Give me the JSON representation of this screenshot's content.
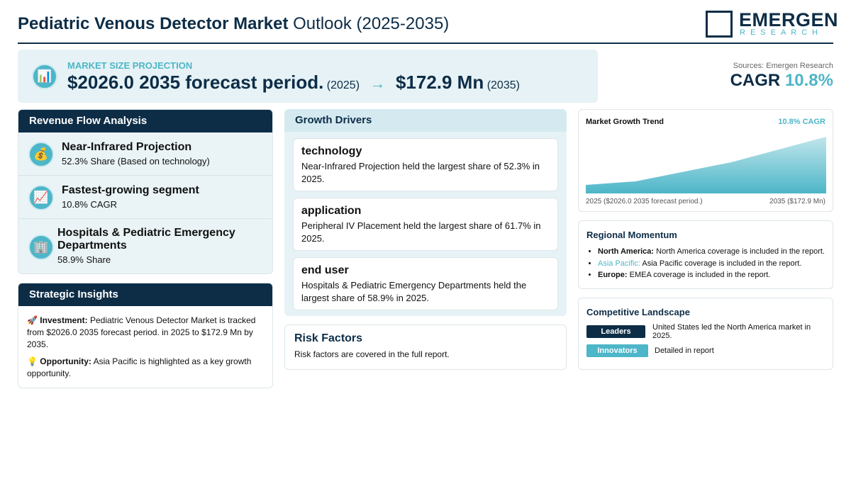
{
  "header": {
    "title_bold": "Pediatric Venous Detector Market",
    "title_rest": "Outlook (2025-2035)",
    "logo": {
      "name": "EMERGEN",
      "tagline": "RESEARCH"
    }
  },
  "projection": {
    "label": "MARKET SIZE PROJECTION",
    "start_value": "$2026.0 2035 forecast period.",
    "start_year": "(2025)",
    "end_value": "$172.9 Mn",
    "end_year": "(2035)"
  },
  "source": "Sources: Emergen Research",
  "cagr": {
    "label": "CAGR",
    "value": "10.8%"
  },
  "revenue_flow": {
    "title": "Revenue Flow Analysis",
    "items": [
      {
        "title": "Near-Infrared Projection",
        "detail": "52.3% Share (Based on technology)"
      },
      {
        "title": "Fastest-growing segment",
        "detail": "10.8% CAGR"
      },
      {
        "title": "Hospitals & Pediatric Emergency Departments",
        "detail": "58.9% Share"
      }
    ]
  },
  "strategic_insights": {
    "title": "Strategic Insights",
    "items": [
      {
        "label": "Investment:",
        "text": "Pediatric Venous Detector Market is tracked from $2026.0 2035 forecast period. in 2025 to $172.9 Mn by 2035."
      },
      {
        "label": "Opportunity:",
        "text": "Asia Pacific is highlighted as a key growth opportunity."
      }
    ]
  },
  "growth_drivers": {
    "title": "Growth Drivers",
    "cards": [
      {
        "title": "technology",
        "text": "Near-Infrared Projection held the largest share of 52.3% in 2025."
      },
      {
        "title": "application",
        "text": "Peripheral IV Placement held the largest share of 61.7% in 2025."
      },
      {
        "title": "end user",
        "text": "Hospitals & Pediatric Emergency Departments held the largest share of 58.9% in 2025."
      }
    ]
  },
  "risk_factors": {
    "title": "Risk Factors",
    "text": "Risk factors are covered in the full report."
  },
  "trend_chart": {
    "title": "Market Growth Trend",
    "badge": "10.8% CAGR",
    "start_label": "2025 ($2026.0 2035 forecast period.)",
    "end_label": "2035 ($172.9 Mn)"
  },
  "regional": {
    "title": "Regional Momentum",
    "items": [
      {
        "region": "North America:",
        "text": "North America coverage is included in the report."
      },
      {
        "region": "Asia Pacific:",
        "text": "Asia Pacific coverage is included in the report."
      },
      {
        "region": "Europe:",
        "text": "EMEA coverage is included in the report."
      }
    ]
  },
  "competitive": {
    "title": "Competitive Landscape",
    "rows": [
      {
        "tag": "Leaders",
        "text": "United States led the North America market in 2025."
      },
      {
        "tag": "Innovators",
        "text": "Detailed in report"
      }
    ]
  }
}
